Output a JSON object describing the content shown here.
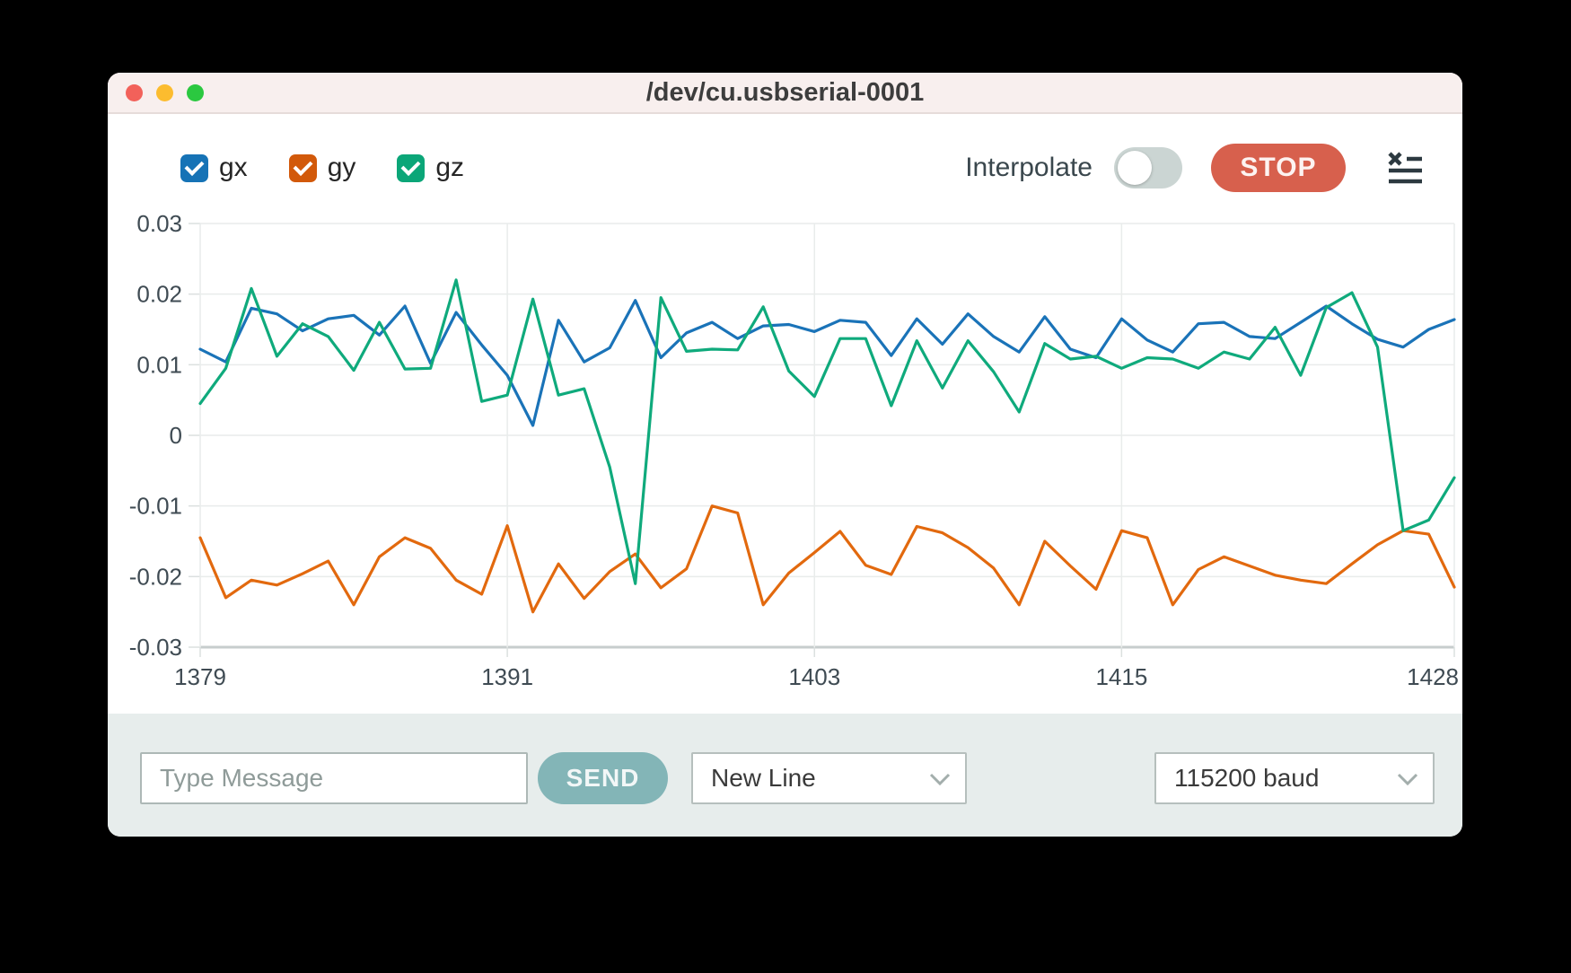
{
  "window": {
    "title": "/dev/cu.usbserial-0001"
  },
  "titlebar_buttons": {
    "close": "close",
    "minimize": "minimize",
    "zoom": "zoom"
  },
  "toolbar": {
    "series_toggles": [
      {
        "label": "gx",
        "color": "#1673b6",
        "checked": true
      },
      {
        "label": "gy",
        "color": "#d2590a",
        "checked": true
      },
      {
        "label": "gz",
        "color": "#0ba678",
        "checked": true
      }
    ],
    "interpolate_label": "Interpolate",
    "interpolate_on": false,
    "stop_label": "STOP",
    "console_icon": "clear-console-icon"
  },
  "chart_data": {
    "type": "line",
    "title": "",
    "xlabel": "",
    "ylabel": "",
    "grid": true,
    "ylim": [
      -0.03,
      0.03
    ],
    "yticks": [
      {
        "value": 0.03,
        "label": "0.03"
      },
      {
        "value": 0.02,
        "label": "0.02"
      },
      {
        "value": 0.01,
        "label": "0.01"
      },
      {
        "value": 0,
        "label": "0"
      },
      {
        "value": -0.01,
        "label": "-0.01"
      },
      {
        "value": -0.02,
        "label": "-0.02"
      },
      {
        "value": -0.03,
        "label": "-0.03"
      }
    ],
    "xticks": [
      {
        "index": 0,
        "label": "1379"
      },
      {
        "index": 12,
        "label": "1391"
      },
      {
        "index": 24,
        "label": "1403"
      },
      {
        "index": 36,
        "label": "1415"
      },
      {
        "index": 49,
        "label": "1428"
      }
    ],
    "x": [
      1379,
      1380,
      1381,
      1382,
      1383,
      1384,
      1385,
      1386,
      1387,
      1388,
      1389,
      1390,
      1391,
      1392,
      1393,
      1394,
      1395,
      1396,
      1397,
      1398,
      1399,
      1400,
      1401,
      1402,
      1403,
      1404,
      1405,
      1406,
      1407,
      1408,
      1409,
      1410,
      1411,
      1412,
      1413,
      1414,
      1415,
      1416,
      1417,
      1418,
      1419,
      1420,
      1421,
      1422,
      1423,
      1424,
      1425,
      1426,
      1427,
      1428
    ],
    "series": [
      {
        "name": "gx",
        "color": "#1a73b8",
        "values": [
          0.0122,
          0.0104,
          0.018,
          0.0172,
          0.0148,
          0.0165,
          0.017,
          0.0142,
          0.0183,
          0.0102,
          0.0174,
          0.0128,
          0.0085,
          0.0014,
          0.0163,
          0.0104,
          0.0124,
          0.0191,
          0.011,
          0.0145,
          0.016,
          0.0137,
          0.0155,
          0.0157,
          0.0147,
          0.0163,
          0.016,
          0.0113,
          0.0165,
          0.0129,
          0.0172,
          0.014,
          0.0118,
          0.0168,
          0.0122,
          0.011,
          0.0165,
          0.0135,
          0.0118,
          0.0158,
          0.016,
          0.014,
          0.0137,
          0.016,
          0.0183,
          0.0158,
          0.0136,
          0.0125,
          0.015,
          0.0164
        ]
      },
      {
        "name": "gy",
        "color": "#e2690e",
        "values": [
          -0.0145,
          -0.023,
          -0.0205,
          -0.0212,
          -0.0196,
          -0.0178,
          -0.024,
          -0.0172,
          -0.0145,
          -0.016,
          -0.0205,
          -0.0225,
          -0.0128,
          -0.025,
          -0.0182,
          -0.0231,
          -0.0193,
          -0.0168,
          -0.0216,
          -0.0189,
          -0.01,
          -0.011,
          -0.024,
          -0.0195,
          -0.0166,
          -0.0136,
          -0.0184,
          -0.0197,
          -0.0129,
          -0.0138,
          -0.0159,
          -0.0188,
          -0.024,
          -0.015,
          -0.0185,
          -0.0218,
          -0.0135,
          -0.0145,
          -0.024,
          -0.019,
          -0.0172,
          -0.0185,
          -0.0198,
          -0.0205,
          -0.021,
          -0.0182,
          -0.0155,
          -0.0135,
          -0.014,
          -0.0215
        ]
      },
      {
        "name": "gz",
        "color": "#0faa7c",
        "values": [
          0.0045,
          0.0095,
          0.0208,
          0.0112,
          0.0158,
          0.014,
          0.0092,
          0.016,
          0.0094,
          0.0095,
          0.022,
          0.0048,
          0.0057,
          0.0193,
          0.0057,
          0.0066,
          -0.0045,
          -0.021,
          0.0195,
          0.0119,
          0.0122,
          0.0121,
          0.0182,
          0.0091,
          0.0055,
          0.0137,
          0.0137,
          0.0042,
          0.0134,
          0.0067,
          0.0134,
          0.009,
          0.0033,
          0.013,
          0.0108,
          0.0112,
          0.0095,
          0.011,
          0.0108,
          0.0095,
          0.0118,
          0.0108,
          0.0153,
          0.0085,
          0.0181,
          0.0202,
          0.0125,
          -0.0135,
          -0.012,
          -0.006
        ]
      }
    ],
    "legend_position": "top-left-checkboxes"
  },
  "bottom_bar": {
    "message_placeholder": "Type Message",
    "send_label": "SEND",
    "line_ending_selected": "New Line",
    "baud_selected": "115200 baud"
  }
}
